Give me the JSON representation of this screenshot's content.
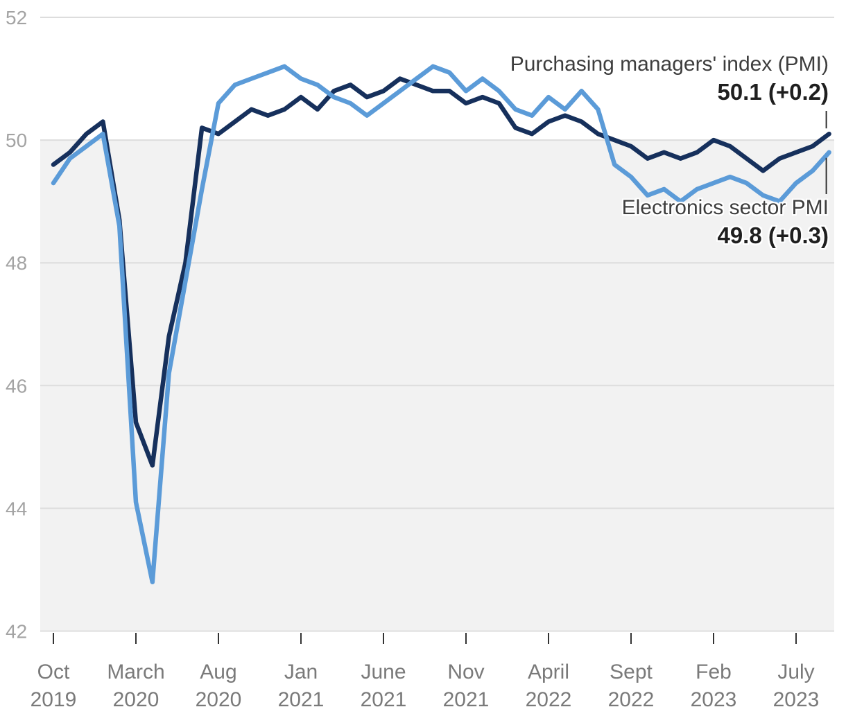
{
  "chart_data": {
    "type": "line",
    "title": "",
    "xlabel": "",
    "ylabel": "",
    "ylim": [
      42,
      52
    ],
    "grid": true,
    "legend_position": "inline-annotations",
    "shaded_band": {
      "from": 42,
      "to": 50,
      "color": "#f2f2f2"
    },
    "y_ticks": [
      52,
      50,
      48,
      46,
      44,
      42
    ],
    "x": [
      "Oct 2019",
      "Nov 2019",
      "Dec 2019",
      "Jan 2020",
      "Feb 2020",
      "Mar 2020",
      "Apr 2020",
      "May 2020",
      "Jun 2020",
      "Jul 2020",
      "Aug 2020",
      "Sep 2020",
      "Oct 2020",
      "Nov 2020",
      "Dec 2020",
      "Jan 2021",
      "Feb 2021",
      "Mar 2021",
      "Apr 2021",
      "May 2021",
      "Jun 2021",
      "Jul 2021",
      "Aug 2021",
      "Sep 2021",
      "Oct 2021",
      "Nov 2021",
      "Dec 2021",
      "Jan 2022",
      "Feb 2022",
      "Mar 2022",
      "Apr 2022",
      "May 2022",
      "Jun 2022",
      "Jul 2022",
      "Aug 2022",
      "Sep 2022",
      "Oct 2022",
      "Nov 2022",
      "Dec 2022",
      "Jan 2023",
      "Feb 2023",
      "Mar 2023",
      "Apr 2023",
      "May 2023",
      "Jun 2023",
      "Jul 2023",
      "Aug 2023",
      "Sep 2023"
    ],
    "x_tick_labels": [
      {
        "month": "Oct",
        "year": "2019",
        "month_index": 0
      },
      {
        "month": "March",
        "year": "2020",
        "month_index": 5
      },
      {
        "month": "Aug",
        "year": "2020",
        "month_index": 10
      },
      {
        "month": "Jan",
        "year": "2021",
        "month_index": 15
      },
      {
        "month": "June",
        "year": "2021",
        "month_index": 20
      },
      {
        "month": "Nov",
        "year": "2021",
        "month_index": 25
      },
      {
        "month": "April",
        "year": "2022",
        "month_index": 30
      },
      {
        "month": "Sept",
        "year": "2022",
        "month_index": 35
      },
      {
        "month": "Feb",
        "year": "2023",
        "month_index": 40
      },
      {
        "month": "July",
        "year": "2023",
        "month_index": 45
      }
    ],
    "series": [
      {
        "name": "Purchasing managers' index (PMI)",
        "color": "#16305c",
        "values": [
          49.6,
          49.8,
          50.1,
          50.3,
          48.7,
          45.4,
          44.7,
          46.8,
          48.0,
          50.2,
          50.1,
          50.3,
          50.5,
          50.4,
          50.5,
          50.7,
          50.5,
          50.8,
          50.9,
          50.7,
          50.8,
          51.0,
          50.9,
          50.8,
          50.8,
          50.6,
          50.7,
          50.6,
          50.2,
          50.1,
          50.3,
          50.4,
          50.3,
          50.1,
          50.0,
          49.9,
          49.7,
          49.8,
          49.7,
          49.8,
          50.0,
          49.9,
          49.7,
          49.5,
          49.7,
          49.8,
          49.9,
          50.1
        ]
      },
      {
        "name": "Electronics sector PMI",
        "color": "#5b9bd8",
        "values": [
          49.3,
          49.7,
          49.9,
          50.1,
          48.6,
          44.1,
          42.8,
          46.2,
          47.7,
          49.2,
          50.6,
          50.9,
          51.0,
          51.1,
          51.2,
          51.0,
          50.9,
          50.7,
          50.6,
          50.4,
          50.6,
          50.8,
          51.0,
          51.2,
          51.1,
          50.8,
          51.0,
          50.8,
          50.5,
          50.4,
          50.7,
          50.5,
          50.8,
          50.5,
          49.6,
          49.4,
          49.1,
          49.2,
          49.0,
          49.2,
          49.3,
          49.4,
          49.3,
          49.1,
          49.0,
          49.3,
          49.5,
          49.8
        ]
      }
    ]
  },
  "annotations": {
    "pmi": {
      "label": "Purchasing managers' index (PMI)",
      "value": "50.1 (+0.2)"
    },
    "electronics": {
      "label": "Electronics sector PMI",
      "value": "49.8 (+0.3)"
    }
  },
  "colors": {
    "pmi_line": "#16305c",
    "electronics_line": "#5b9bd8",
    "band": "#f2f2f2",
    "gridline": "#dddddd",
    "tick_mark": "#333333",
    "y_tick_label": "#a3a3a3",
    "x_tick_label": "#7a7a7a",
    "leader_line": "#2f2f2f"
  }
}
